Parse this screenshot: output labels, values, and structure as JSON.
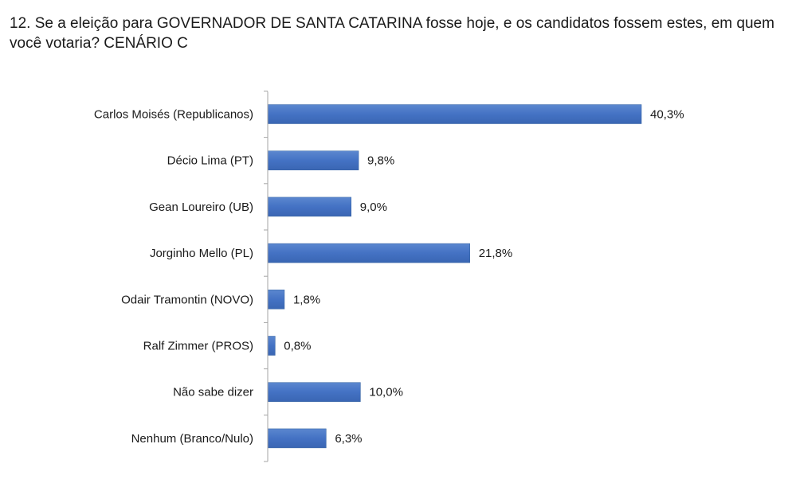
{
  "question": {
    "title": "12. Se a eleição para GOVERNADOR DE SANTA CATARINA fosse hoje, e os candidatos fossem estes, em quem você votaria? CENÁRIO C"
  },
  "chart_data": {
    "type": "bar",
    "orientation": "horizontal",
    "title": "12. Se a eleição para GOVERNADOR DE SANTA CATARINA fosse hoje, e os candidatos fossem estes, em quem você votaria? CENÁRIO C",
    "categories": [
      "Carlos Moisés (Republicanos)",
      "Décio Lima (PT)",
      "Gean Loureiro (UB)",
      "Jorginho Mello (PL)",
      "Odair Tramontin (NOVO)",
      "Ralf Zimmer (PROS)",
      "Não sabe dizer",
      "Nenhum (Branco/Nulo)"
    ],
    "values": [
      40.3,
      9.8,
      9.0,
      21.8,
      1.8,
      0.8,
      10.0,
      6.3
    ],
    "value_labels": [
      "40,3%",
      "9,8%",
      "9,0%",
      "21,8%",
      "1,8%",
      "0,8%",
      "10,0%",
      "6,3%"
    ],
    "unit": "%",
    "bar_color": "#4472c4",
    "grid": false,
    "legend": "none",
    "xlim": [
      0,
      40.3
    ]
  }
}
